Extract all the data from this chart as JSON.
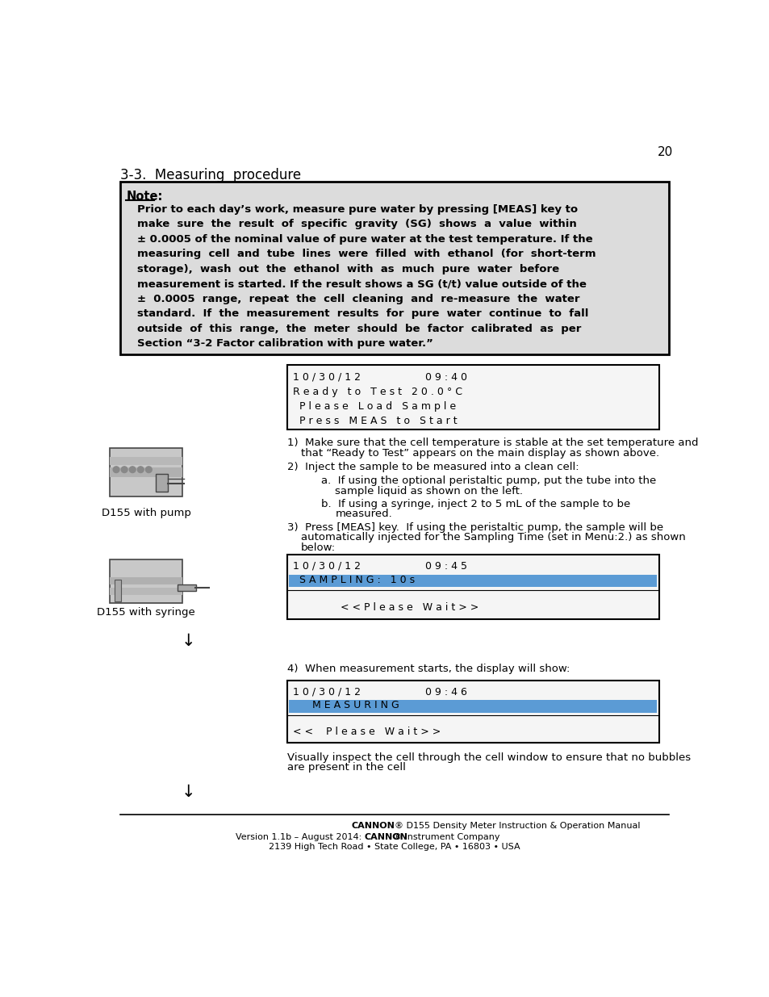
{
  "page_number": "20",
  "section_title": "3-3.  Measuring  procedure",
  "note_box": {
    "background": "#dcdcdc",
    "border_color": "#000000",
    "label": "Note:",
    "text_lines": [
      "Prior to each day’s work, measure pure water by pressing [MEAS] key to",
      "make  sure  the  result  of  specific  gravity  (SG)  shows  a  value  within",
      "± 0.0005 of the nominal value of pure water at the test temperature. If the",
      "measuring  cell  and  tube  lines  were  filled  with  ethanol  (for  short-term",
      "storage),  wash  out  the  ethanol  with  as  much  pure  water  before",
      "measurement is started. If the result shows a SG (t/t) value outside of the",
      "±  0.0005  range,  repeat  the  cell  cleaning  and  re-measure  the  water",
      "standard.  If  the  measurement  results  for  pure  water  continue  to  fall",
      "outside  of  this  range,  the  meter  should  be  factor  calibrated  as  per",
      "Section “3-2 Factor calibration with pure water.”"
    ]
  },
  "display1": {
    "lines": [
      "1 0 / 3 0 / 1 2                    0 9 : 4 0",
      "R e a d y   t o   T e s t   2 0 . 0 ° C",
      "  P l e a s e   L o a d   S a m p l e",
      "  P r e s s   M E A S   t o   S t a r t"
    ]
  },
  "display2": {
    "lines": [
      "1 0 / 3 0 / 1 2                    0 9 : 4 5",
      "  S A M P L I N G :   1 0 s",
      "      < < P l e a s e   W a i t > >"
    ],
    "highlight_line": 1,
    "highlight_color": "#5b9bd5"
  },
  "display3": {
    "lines": [
      "1 0 / 3 0 / 1 2                    0 9 : 4 6",
      "      M E A S U R I N G",
      "< <    P l e a s e   W a i t > >"
    ],
    "highlight_line": 1,
    "highlight_color": "#5b9bd5"
  },
  "label_pump": "D155 with pump",
  "label_syringe": "D155 with syringe",
  "arrow": "↓",
  "footer_line3": "2139 High Tech Road • State College, PA • 16803 • USA",
  "bg_color": "#ffffff"
}
